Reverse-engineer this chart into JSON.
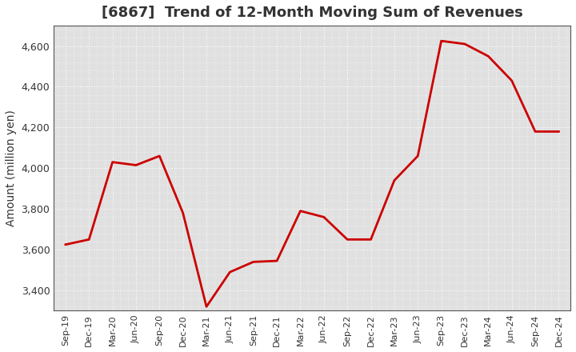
{
  "title": "[6867]  Trend of 12-Month Moving Sum of Revenues",
  "ylabel": "Amount (million yen)",
  "line_color": "#cc0000",
  "line_width": 2.0,
  "background_color": "#ffffff",
  "plot_bg_color": "#e8e8e8",
  "grid_color": "#ffffff",
  "ylim": [
    3300,
    4700
  ],
  "yticks": [
    3400,
    3600,
    3800,
    4000,
    4200,
    4400,
    4600
  ],
  "labels": [
    "Sep-19",
    "Dec-19",
    "Mar-20",
    "Jun-20",
    "Sep-20",
    "Dec-20",
    "Mar-21",
    "Jun-21",
    "Sep-21",
    "Dec-21",
    "Mar-22",
    "Jun-22",
    "Sep-22",
    "Dec-22",
    "Mar-23",
    "Jun-23",
    "Sep-23",
    "Dec-23",
    "Mar-24",
    "Jun-24",
    "Sep-24",
    "Dec-24"
  ],
  "values": [
    3625,
    3650,
    4030,
    4015,
    4060,
    3780,
    3320,
    3490,
    3540,
    3545,
    3790,
    3760,
    3650,
    3650,
    3940,
    4060,
    4625,
    4610,
    4550,
    4430,
    4180,
    4180
  ],
  "title_fontsize": 13,
  "ylabel_fontsize": 10,
  "tick_fontsize": 9,
  "xtick_fontsize": 8
}
